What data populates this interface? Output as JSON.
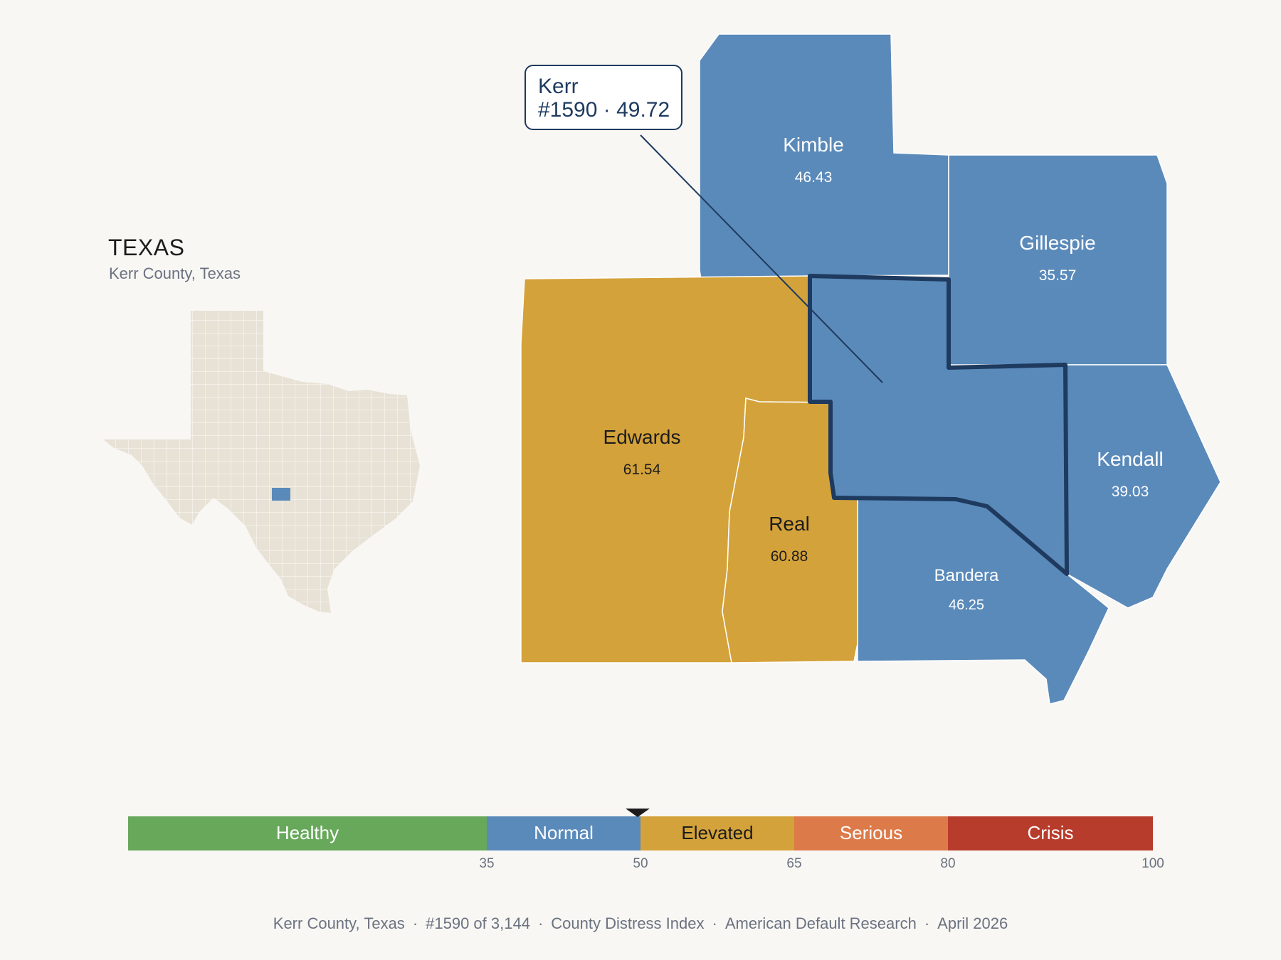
{
  "state": {
    "title": "TEXAS",
    "subtitle": "Kerr County, Texas"
  },
  "callout": {
    "name": "Kerr",
    "detail": "#1590 · 49.72"
  },
  "counties": [
    {
      "name": "Kimble",
      "value": "46.43",
      "category": "Normal"
    },
    {
      "name": "Gillespie",
      "value": "35.57",
      "category": "Normal"
    },
    {
      "name": "Edwards",
      "value": "61.54",
      "category": "Elevated"
    },
    {
      "name": "Real",
      "value": "60.88",
      "category": "Elevated"
    },
    {
      "name": "Kendall",
      "value": "39.03",
      "category": "Normal"
    },
    {
      "name": "Bandera",
      "value": "46.25",
      "category": "Normal"
    }
  ],
  "highlighted_county": {
    "name": "Kerr",
    "rank": "#1590",
    "value": 49.72
  },
  "legend": {
    "segments": [
      {
        "label": "Healthy",
        "color": "#67a85a"
      },
      {
        "label": "Normal",
        "color": "#5a8aba"
      },
      {
        "label": "Elevated",
        "color": "#d4a23a"
      },
      {
        "label": "Serious",
        "color": "#dd7a4a"
      },
      {
        "label": "Crisis",
        "color": "#b83c2c"
      }
    ],
    "ticks": [
      "35",
      "50",
      "65",
      "80",
      "100"
    ],
    "marker_value": 49.72
  },
  "footer": {
    "items": [
      "Kerr County, Texas",
      "#1590 of 3,144",
      "County Distress Index",
      "American Default Research",
      "April 2026"
    ]
  },
  "colors": {
    "normal": "#5a8aba",
    "elevated": "#d4a23a",
    "highlight_border": "#1e3a5f",
    "state_fill": "#e8e2d6",
    "background": "#f8f7f4"
  }
}
